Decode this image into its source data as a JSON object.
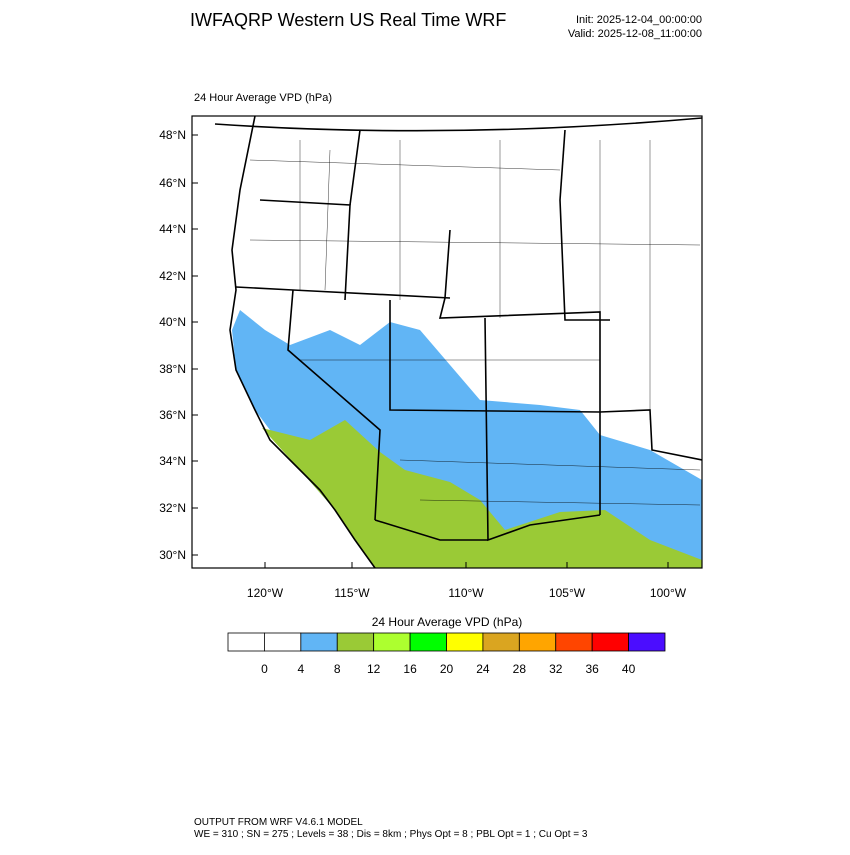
{
  "header": {
    "title": "IWFAQRP Western US Real Time WRF",
    "init": "Init: 2025-12-04_00:00:00",
    "valid": "Valid: 2025-12-08_11:00:00"
  },
  "map": {
    "title": "24 Hour Average VPD   (hPa)",
    "lat_labels": [
      "48°N",
      "46°N",
      "44°N",
      "42°N",
      "40°N",
      "38°N",
      "36°N",
      "34°N",
      "32°N",
      "30°N"
    ],
    "lon_labels": [
      "120°W",
      "115°W",
      "110°W",
      "105°W",
      "100°W"
    ]
  },
  "colorbar": {
    "title": "24 Hour Average VPD  (hPa)",
    "colors": [
      "#ffffff",
      "#ffffff",
      "#61b5f5",
      "#9aca36",
      "#adff2f",
      "#00ff00",
      "#ffff00",
      "#daa520",
      "#ffa500",
      "#ff4500",
      "#ff0000",
      "#4b0dff"
    ],
    "labels": [
      "0",
      "4",
      "8",
      "12",
      "16",
      "20",
      "24",
      "28",
      "32",
      "36",
      "40"
    ]
  },
  "footer": {
    "line1": "OUTPUT FROM WRF V4.6.1 MODEL",
    "line2": "WE = 310 ; SN = 275 ; Levels = 38 ; Dis = 8km ; Phys Opt = 8 ; PBL Opt = 1 ; Cu Opt = 3"
  }
}
